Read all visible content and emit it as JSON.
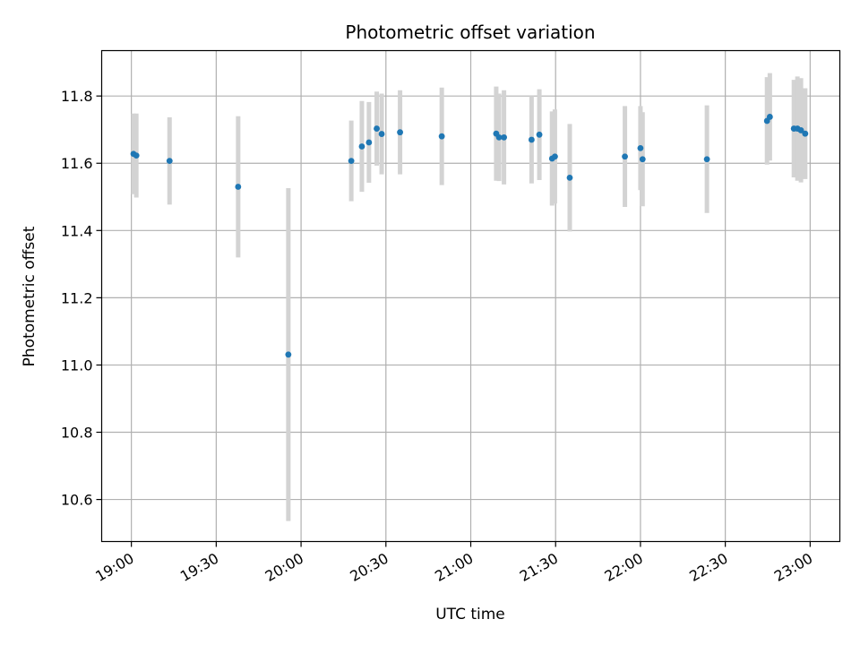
{
  "chart_data": {
    "type": "scatter",
    "title": "Photometric offset variation",
    "xlabel": "UTC time",
    "ylabel": "Photometric offset",
    "x_ticks": [
      "19:00",
      "19:30",
      "20:00",
      "20:30",
      "21:00",
      "21:30",
      "22:00",
      "22:30",
      "23:00"
    ],
    "y_ticks": [
      "10.6",
      "10.8",
      "11.0",
      "11.2",
      "11.4",
      "11.6",
      "11.8"
    ],
    "xlim": [
      "18:49:30",
      "23:10:30"
    ],
    "ylim": [
      10.475,
      11.935
    ],
    "grid": true,
    "legend": "none",
    "colors": {
      "marker": "#1f77b4",
      "errorbar": "#d3d3d3",
      "grid": "#b0b0b0"
    },
    "points": [
      {
        "x": "19:00:45",
        "y": 11.628,
        "err": 0.12
      },
      {
        "x": "19:01:45",
        "y": 11.623,
        "err": 0.125
      },
      {
        "x": "19:13:30",
        "y": 11.607,
        "err": 0.13
      },
      {
        "x": "19:37:45",
        "y": 11.53,
        "err": 0.21
      },
      {
        "x": "19:55:30",
        "y": 11.031,
        "err": 0.495
      },
      {
        "x": "20:17:45",
        "y": 11.607,
        "err": 0.12
      },
      {
        "x": "20:21:30",
        "y": 11.65,
        "err": 0.135
      },
      {
        "x": "20:24:00",
        "y": 11.662,
        "err": 0.12
      },
      {
        "x": "20:26:45",
        "y": 11.703,
        "err": 0.11
      },
      {
        "x": "20:28:30",
        "y": 11.687,
        "err": 0.12
      },
      {
        "x": "20:35:00",
        "y": 11.692,
        "err": 0.125
      },
      {
        "x": "20:49:45",
        "y": 11.68,
        "err": 0.145
      },
      {
        "x": "21:09:00",
        "y": 11.688,
        "err": 0.14
      },
      {
        "x": "21:10:00",
        "y": 11.677,
        "err": 0.13
      },
      {
        "x": "21:11:45",
        "y": 11.677,
        "err": 0.14
      },
      {
        "x": "21:21:30",
        "y": 11.67,
        "err": 0.13
      },
      {
        "x": "21:24:15",
        "y": 11.685,
        "err": 0.135
      },
      {
        "x": "21:28:45",
        "y": 11.614,
        "err": 0.14
      },
      {
        "x": "21:29:45",
        "y": 11.62,
        "err": 0.14
      },
      {
        "x": "21:35:00",
        "y": 11.557,
        "err": 0.16
      },
      {
        "x": "21:54:30",
        "y": 11.62,
        "err": 0.15
      },
      {
        "x": "22:00:00",
        "y": 11.645,
        "err": 0.125
      },
      {
        "x": "22:00:45",
        "y": 11.612,
        "err": 0.14
      },
      {
        "x": "22:23:30",
        "y": 11.612,
        "err": 0.16
      },
      {
        "x": "22:44:45",
        "y": 11.726,
        "err": 0.13
      },
      {
        "x": "22:45:45",
        "y": 11.738,
        "err": 0.13
      },
      {
        "x": "22:54:15",
        "y": 11.703,
        "err": 0.145
      },
      {
        "x": "22:55:30",
        "y": 11.703,
        "err": 0.155
      },
      {
        "x": "22:56:45",
        "y": 11.698,
        "err": 0.155
      },
      {
        "x": "22:58:15",
        "y": 11.688,
        "err": 0.135
      }
    ]
  }
}
